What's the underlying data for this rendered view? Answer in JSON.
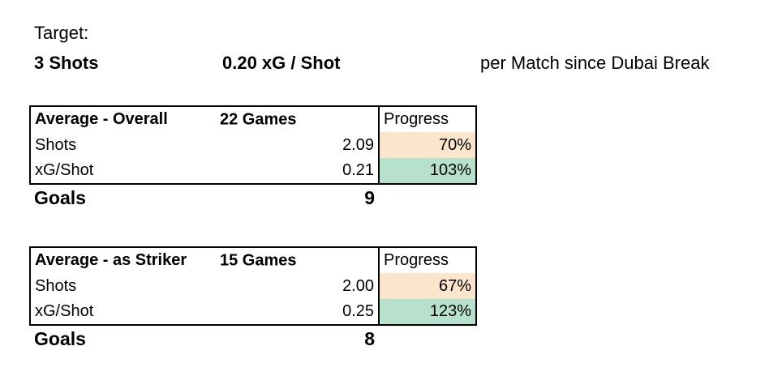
{
  "target": {
    "label": "Target:",
    "shots": "3 Shots",
    "xg_per_shot": "0.20 xG / Shot",
    "scope": "per Match since Dubai Break"
  },
  "colors": {
    "progress_below": "#fce5cd",
    "progress_above": "#b7e1cd"
  },
  "tables": [
    {
      "title": "Average - Overall",
      "games": "22 Games",
      "progress_header": "Progress",
      "rows": [
        {
          "label": "Shots",
          "value": "2.09",
          "progress": "70%",
          "status": "below"
        },
        {
          "label": "xG/Shot",
          "value": "0.21",
          "progress": "103%",
          "status": "above"
        }
      ],
      "goals_label": "Goals",
      "goals_value": "9"
    },
    {
      "title": "Average - as Striker",
      "games": "15 Games",
      "progress_header": "Progress",
      "rows": [
        {
          "label": "Shots",
          "value": "2.00",
          "progress": "67%",
          "status": "below"
        },
        {
          "label": "xG/Shot",
          "value": "0.25",
          "progress": "123%",
          "status": "above"
        }
      ],
      "goals_label": "Goals",
      "goals_value": "8"
    }
  ]
}
